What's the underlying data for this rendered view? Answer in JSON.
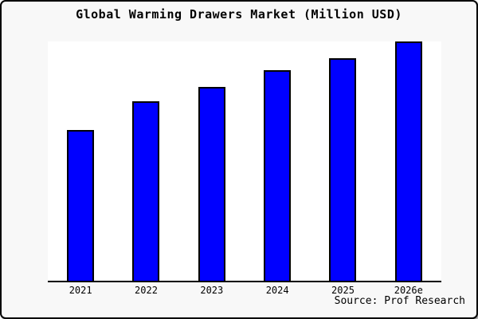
{
  "colors": {
    "canvas_background": "#f8f8f8",
    "plot_background": "#ffffff",
    "bar_fill": "#0000ff",
    "bar_border": "#000000",
    "axis_line": "#000000",
    "text": "#000000",
    "frame_border": "#000000"
  },
  "chart_data": {
    "type": "bar",
    "title": "Global Warming Drawers Market (Million USD)",
    "categories": [
      "2021",
      "2022",
      "2023",
      "2024",
      "2025",
      "2026e"
    ],
    "values": [
      63,
      75,
      81,
      88,
      93,
      100
    ],
    "values_note": "No y-axis tick labels are shown in the chart; values are estimated relative bar heights with 2026e = 100.",
    "xlabel": "",
    "ylabel": "",
    "ylim": [
      0,
      100
    ],
    "grid": false,
    "legend": "none",
    "source": "Source: Prof Research",
    "bar_color": "#0000ff"
  }
}
